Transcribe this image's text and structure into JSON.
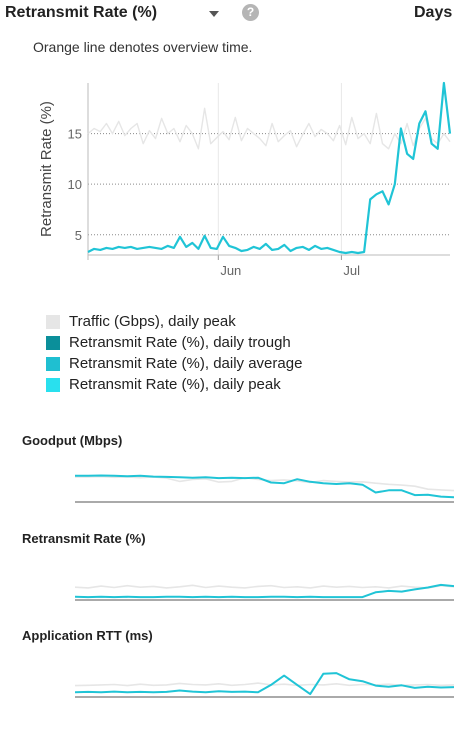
{
  "header": {
    "title": "Retransmit Rate (%)",
    "range_label": "Days"
  },
  "subtitle": "Orange line denotes overview time.",
  "colors": {
    "traffic": "#e6e6e6",
    "trough": "#0b8f9a",
    "average": "#1fbfd1",
    "peak": "#29e0ee",
    "series_line": "#20c4d6"
  },
  "chart_data": [
    {
      "type": "line",
      "ylabel": "Retransmit Rate (%)",
      "ylim": [
        3,
        20
      ],
      "yticks": [
        5,
        10,
        15
      ],
      "xtick_labels": [
        "Jun",
        "Jul"
      ],
      "grid": true,
      "legend": "bottom",
      "series": [
        {
          "name": "Traffic (Gbps), daily peak",
          "values": [
            15,
            15.5,
            15.2,
            16,
            15,
            16.2,
            14.8,
            15.5,
            16,
            14,
            15.3,
            14.5,
            16.5,
            15,
            15.5,
            14.2,
            15.8,
            15,
            13.5,
            17.5,
            14,
            14.6,
            15.2,
            14.4,
            16.6,
            14.3,
            15.5,
            15,
            14.5,
            13.8,
            16,
            14.2,
            14.8,
            15.3,
            13.7,
            14.9,
            16,
            14.7,
            15.4,
            15,
            14.3,
            15.8,
            13.9,
            16.6,
            14.5,
            15,
            14,
            17,
            14,
            13.5,
            15,
            14,
            16,
            13.8,
            15.5,
            16.5,
            14.5,
            14,
            15,
            14.2
          ]
        },
        {
          "name": "Retransmit Rate (%), daily trough",
          "values": []
        },
        {
          "name": "Retransmit Rate (%), daily average",
          "values": []
        },
        {
          "name": "Retransmit Rate (%), daily peak",
          "values": [
            3.3,
            3.6,
            3.5,
            3.7,
            3.6,
            3.8,
            3.7,
            3.8,
            3.6,
            3.7,
            3.8,
            3.7,
            3.6,
            3.9,
            3.7,
            4.8,
            3.8,
            4.2,
            3.6,
            4.9,
            3.7,
            3.6,
            4.8,
            3.9,
            3.7,
            3.4,
            3.5,
            3.8,
            3.6,
            4.1,
            3.5,
            3.6,
            4.0,
            3.4,
            3.7,
            3.8,
            3.5,
            3.9,
            3.6,
            3.7,
            3.5,
            3.3,
            3.2,
            3.3,
            3.2,
            3.3,
            8.5,
            9,
            9.3,
            8.0,
            10,
            15.5,
            13,
            12.5,
            16,
            17.2,
            14,
            13.5,
            20,
            15
          ]
        }
      ]
    },
    {
      "type": "line",
      "title": "Goodput (Mbps)",
      "ylim": [
        0,
        10
      ],
      "series": [
        {
          "name": "",
          "values": [
            6.5,
            6.5,
            6.6,
            6.4,
            6.5,
            6.3,
            6.5,
            6.2,
            5.3,
            5.8,
            6.0,
            5.1,
            5.3,
            6.3,
            5.8,
            5.5,
            5.7,
            5.4,
            5.0,
            5.5,
            5.3,
            5.1,
            5.2,
            4.8,
            4.5,
            4.3,
            4.0,
            3.2,
            3.0,
            2.8
          ]
        },
        {
          "name": "",
          "values": [
            6.8,
            6.8,
            6.9,
            6.8,
            6.7,
            6.8,
            6.6,
            6.5,
            6.4,
            6.3,
            6.4,
            6.2,
            6.3,
            6.2,
            6.3,
            5.0,
            4.8,
            5.9,
            5.2,
            4.8,
            4.6,
            4.8,
            4.4,
            2.3,
            2.9,
            2.9,
            1.6,
            1.7,
            1.2,
            1.0
          ]
        }
      ]
    },
    {
      "type": "line",
      "title": "Retransmit Rate (%)",
      "ylim": [
        0,
        10
      ],
      "series": [
        {
          "name": "",
          "values": [
            3.2,
            3.0,
            3.5,
            3.1,
            3.6,
            3.2,
            3.4,
            3.0,
            3.3,
            3.7,
            3.1,
            3.5,
            3.2,
            3.0,
            3.4,
            3.6,
            3.1,
            3.3,
            3.0,
            3.5,
            3.2,
            3.4,
            3.1,
            3.3,
            3.0,
            3.5,
            3.2,
            3.0,
            3.6,
            3.3
          ]
        },
        {
          "name": "",
          "values": [
            0.6,
            0.5,
            0.6,
            0.5,
            0.6,
            0.5,
            0.5,
            0.6,
            0.6,
            0.5,
            0.6,
            0.5,
            0.6,
            0.5,
            0.5,
            0.6,
            0.6,
            0.5,
            0.6,
            0.5,
            0.5,
            0.5,
            0.5,
            1.8,
            2.2,
            2.0,
            2.6,
            3.1,
            3.8,
            3.5
          ]
        }
      ]
    },
    {
      "type": "line",
      "title": "Application RTT (ms)",
      "ylim": [
        0,
        10
      ],
      "series": [
        {
          "name": "",
          "values": [
            2.8,
            2.9,
            3.0,
            3.1,
            2.8,
            3.2,
            2.9,
            3.0,
            3.4,
            3.1,
            3.0,
            3.3,
            2.9,
            3.1,
            3.5,
            3.0,
            3.2,
            2.9,
            3.1,
            3.0,
            3.3,
            2.9,
            3.1,
            3.0,
            3.2,
            2.9,
            3.0,
            3.1,
            2.9,
            3.0
          ]
        },
        {
          "name": "",
          "values": [
            1.0,
            1.1,
            1.0,
            1.2,
            1.0,
            1.1,
            1.0,
            1.1,
            1.5,
            1.2,
            1.0,
            1.3,
            1.1,
            1.2,
            1.0,
            3.0,
            5.5,
            3.0,
            0.5,
            6.0,
            6.2,
            4.5,
            4.0,
            2.8,
            2.5,
            2.9,
            2.2,
            2.5,
            2.3,
            2.4
          ]
        }
      ]
    }
  ]
}
